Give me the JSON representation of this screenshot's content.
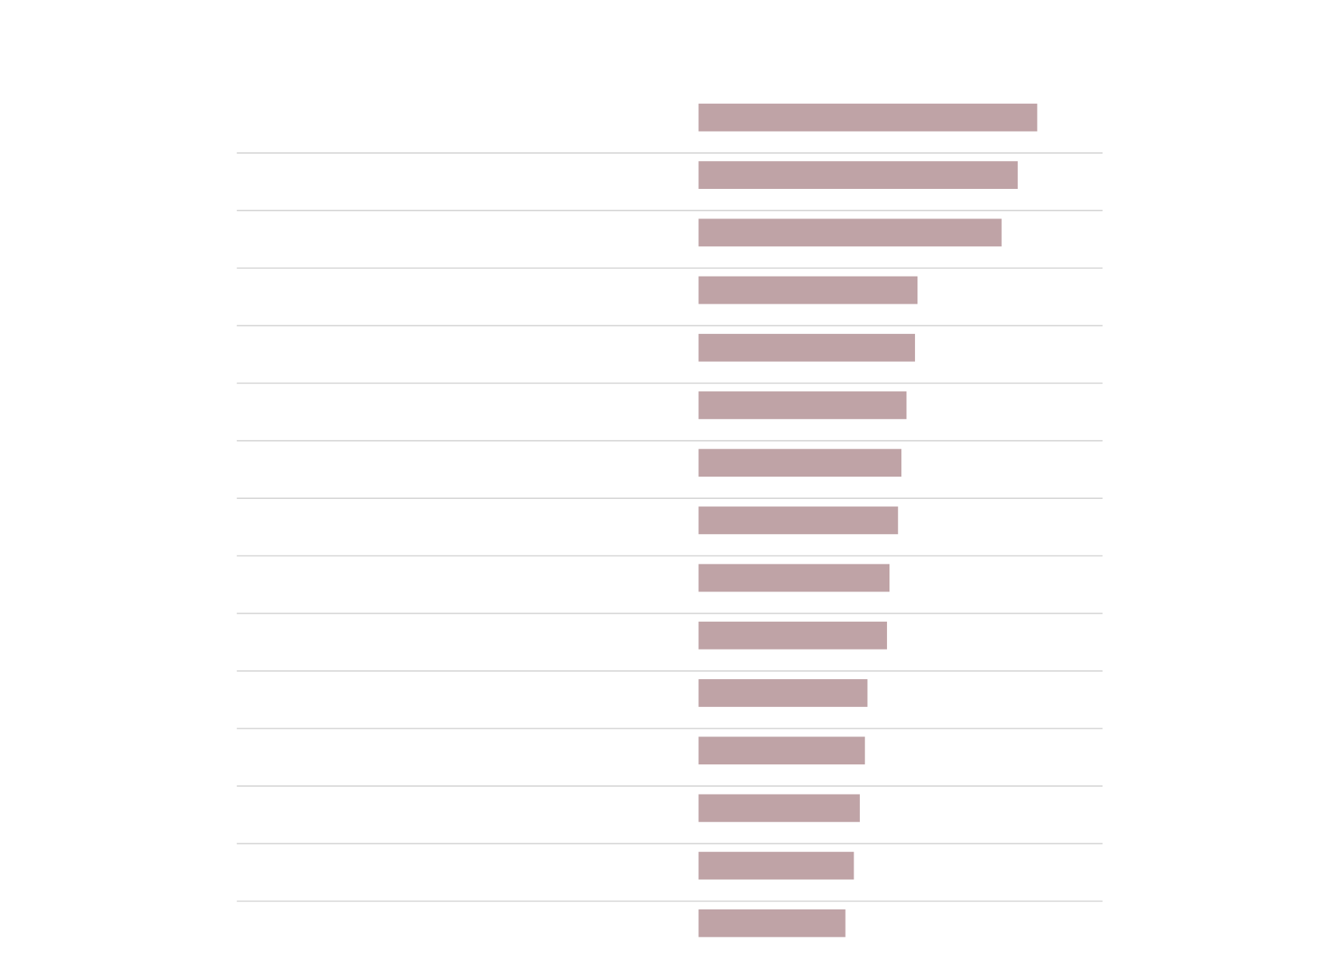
{
  "chart_data": {
    "type": "bar",
    "orientation": "horizontal",
    "values": [
      399,
      376,
      357,
      258,
      255,
      245,
      239,
      235,
      225,
      222,
      199,
      196,
      190,
      183,
      173
    ],
    "color": "#bfa3a6",
    "xlim": [
      0,
      476
    ]
  }
}
